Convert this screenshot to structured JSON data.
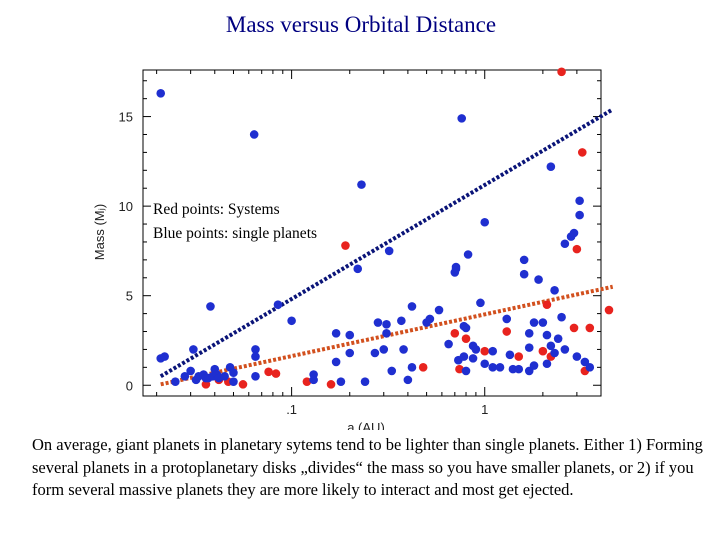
{
  "title": "Mass versus Orbital Distance",
  "caption": "On average, giant planets in planetary sytems tend to be lighter than single planets. Either 1) Forming several planets in a protoplanetary disks „divides“ the mass so you have smaller planets, or 2) if you form several massive planets they are more likely to interact and most get ejected.",
  "colors": {
    "red": "#e8231e",
    "blue": "#1f2fd0",
    "blue_line": "#0a1478",
    "red_line": "#d2501e"
  },
  "chart_data": {
    "type": "scatter",
    "title": "Mass versus Orbital Distance",
    "xlabel": "a (AU)",
    "ylabel": "Mass (Mⱼ)",
    "xscale": "log",
    "xlim": [
      0.017,
      4.0
    ],
    "ylim": [
      -0.6,
      17.6
    ],
    "x_tick_labels": [
      ".1",
      "1"
    ],
    "y_ticks": [
      0,
      5,
      10,
      15
    ],
    "legend": [
      "Red points: Systems",
      "Blue points: single planets"
    ],
    "series": [
      {
        "name": "Systems",
        "color": "red",
        "points": [
          [
            0.036,
            0.05
          ],
          [
            0.042,
            0.3
          ],
          [
            0.047,
            0.2
          ],
          [
            0.056,
            0.05
          ],
          [
            0.076,
            0.75
          ],
          [
            0.083,
            0.65
          ],
          [
            0.12,
            0.2
          ],
          [
            0.16,
            0.05
          ],
          [
            0.19,
            7.8
          ],
          [
            0.48,
            1.0
          ],
          [
            0.7,
            2.9
          ],
          [
            0.74,
            0.9
          ],
          [
            0.8,
            2.6
          ],
          [
            1.0,
            1.9
          ],
          [
            1.3,
            3.0
          ],
          [
            1.5,
            1.6
          ],
          [
            2.0,
            1.9
          ],
          [
            2.1,
            4.5
          ],
          [
            2.2,
            1.6
          ],
          [
            2.5,
            17.5
          ],
          [
            2.9,
            3.2
          ],
          [
            3.0,
            7.6
          ],
          [
            3.2,
            13.0
          ],
          [
            3.3,
            0.8
          ],
          [
            3.5,
            3.2
          ],
          [
            4.4,
            4.2
          ]
        ]
      },
      {
        "name": "single planets",
        "color": "blue",
        "points": [
          [
            0.021,
            16.3
          ],
          [
            0.021,
            1.5
          ],
          [
            0.022,
            1.6
          ],
          [
            0.025,
            0.2
          ],
          [
            0.028,
            0.5
          ],
          [
            0.03,
            0.8
          ],
          [
            0.031,
            2.0
          ],
          [
            0.032,
            0.3
          ],
          [
            0.033,
            0.5
          ],
          [
            0.035,
            0.6
          ],
          [
            0.036,
            0.4
          ],
          [
            0.037,
            0.4
          ],
          [
            0.038,
            4.4
          ],
          [
            0.039,
            0.5
          ],
          [
            0.04,
            0.9
          ],
          [
            0.041,
            0.6
          ],
          [
            0.042,
            0.4
          ],
          [
            0.045,
            0.5
          ],
          [
            0.048,
            1.0
          ],
          [
            0.05,
            0.2
          ],
          [
            0.05,
            0.7
          ],
          [
            0.064,
            14.0
          ],
          [
            0.065,
            2.0
          ],
          [
            0.065,
            1.6
          ],
          [
            0.065,
            0.5
          ],
          [
            0.085,
            4.5
          ],
          [
            0.1,
            3.6
          ],
          [
            0.13,
            0.6
          ],
          [
            0.13,
            0.3
          ],
          [
            0.17,
            2.9
          ],
          [
            0.17,
            1.3
          ],
          [
            0.18,
            0.2
          ],
          [
            0.2,
            1.8
          ],
          [
            0.2,
            2.8
          ],
          [
            0.23,
            11.2
          ],
          [
            0.22,
            6.5
          ],
          [
            0.24,
            0.2
          ],
          [
            0.27,
            1.8
          ],
          [
            0.28,
            3.5
          ],
          [
            0.3,
            2.0
          ],
          [
            0.31,
            3.4
          ],
          [
            0.31,
            2.9
          ],
          [
            0.32,
            7.5
          ],
          [
            0.33,
            0.8
          ],
          [
            0.37,
            3.6
          ],
          [
            0.38,
            2.0
          ],
          [
            0.4,
            0.3
          ],
          [
            0.42,
            1.0
          ],
          [
            0.42,
            4.4
          ],
          [
            0.5,
            3.5
          ],
          [
            0.52,
            3.7
          ],
          [
            0.58,
            4.2
          ],
          [
            0.65,
            2.3
          ],
          [
            0.7,
            6.3
          ],
          [
            0.71,
            6.6
          ],
          [
            0.71,
            6.5
          ],
          [
            0.73,
            1.4
          ],
          [
            0.76,
            14.9
          ],
          [
            0.78,
            1.6
          ],
          [
            0.78,
            3.3
          ],
          [
            0.8,
            3.2
          ],
          [
            0.8,
            0.8
          ],
          [
            0.82,
            7.3
          ],
          [
            0.87,
            1.5
          ],
          [
            0.87,
            2.2
          ],
          [
            0.9,
            2.0
          ],
          [
            0.95,
            4.6
          ],
          [
            1.0,
            9.1
          ],
          [
            1.0,
            1.2
          ],
          [
            1.1,
            1.9
          ],
          [
            1.1,
            1.0
          ],
          [
            1.2,
            1.0
          ],
          [
            1.3,
            3.7
          ],
          [
            1.35,
            1.7
          ],
          [
            1.4,
            0.9
          ],
          [
            1.5,
            0.9
          ],
          [
            1.6,
            7.0
          ],
          [
            1.6,
            6.2
          ],
          [
            1.7,
            2.9
          ],
          [
            1.7,
            0.8
          ],
          [
            1.7,
            2.1
          ],
          [
            1.8,
            3.5
          ],
          [
            1.8,
            1.1
          ],
          [
            1.9,
            5.9
          ],
          [
            2.0,
            3.5
          ],
          [
            2.1,
            1.2
          ],
          [
            2.1,
            2.8
          ],
          [
            2.2,
            12.2
          ],
          [
            2.2,
            2.2
          ],
          [
            2.3,
            5.3
          ],
          [
            2.3,
            1.8
          ],
          [
            2.4,
            2.6
          ],
          [
            2.5,
            3.8
          ],
          [
            2.6,
            7.9
          ],
          [
            2.6,
            2.0
          ],
          [
            2.8,
            8.3
          ],
          [
            2.9,
            8.5
          ],
          [
            3.0,
            1.6
          ],
          [
            3.1,
            10.3
          ],
          [
            3.1,
            9.5
          ],
          [
            3.3,
            1.3
          ],
          [
            3.5,
            1.0
          ]
        ]
      },
      {
        "name": "single planets trend",
        "color": "blue_line",
        "style": "dotted-line",
        "points": [
          [
            0.021,
            0.5
          ],
          [
            4.6,
            15.4
          ]
        ]
      },
      {
        "name": "Systems trend",
        "color": "red_line",
        "style": "dotted-line",
        "points": [
          [
            0.021,
            0.05
          ],
          [
            4.6,
            5.5
          ]
        ]
      }
    ]
  }
}
